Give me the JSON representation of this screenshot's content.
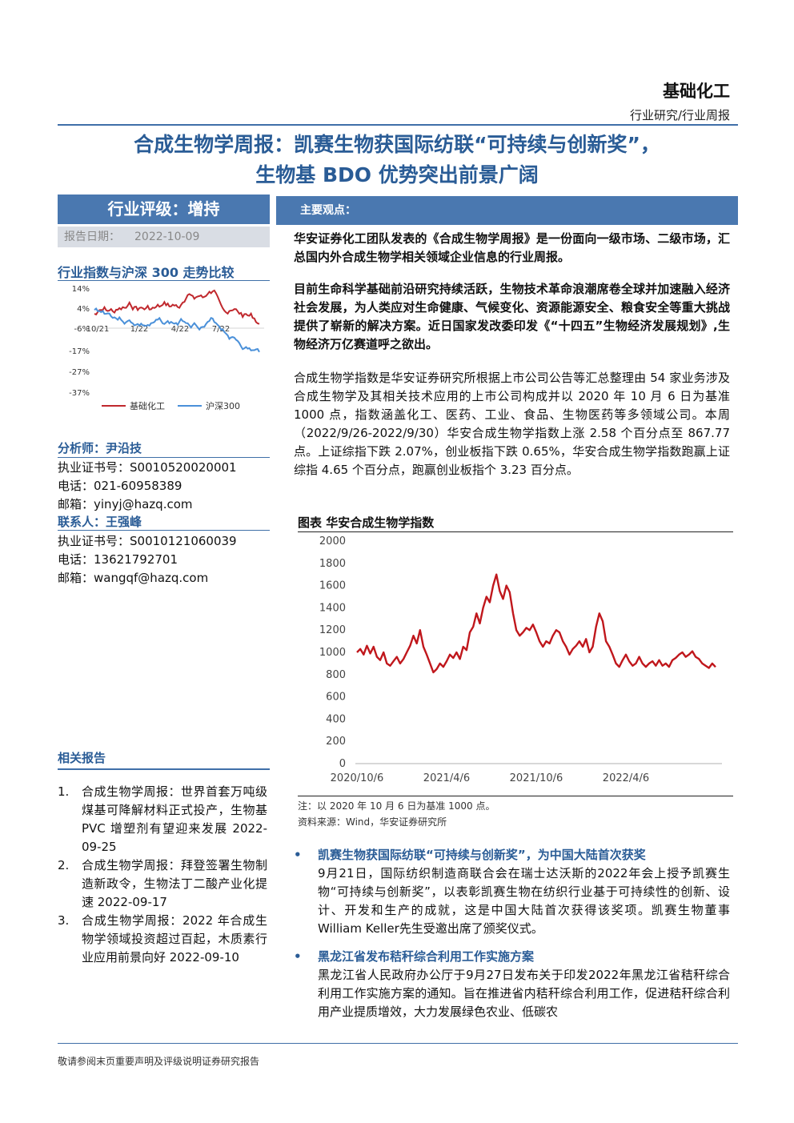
{
  "header": {
    "industry": "基础化工",
    "subtype": "行业研究/行业周报"
  },
  "title": {
    "line1": "合成生物学周报：凯赛生物获国际纺联“可持续与创新奖”，",
    "line2": "生物基 BDO 优势突出前景广阔"
  },
  "rating": {
    "label": "行业评级：增持",
    "date_label": "报告日期：",
    "date": "2022-10-09"
  },
  "comparison": {
    "title": "行业指数与沪深 300 走势比较",
    "chart_data": {
      "type": "line",
      "yticks": [
        "14%",
        "4%",
        "-6%",
        "-17%",
        "-27%",
        "-37%"
      ],
      "xticks": [
        "10/21",
        "1/22",
        "4/22",
        "7/22"
      ],
      "series": [
        {
          "name": "基础化工",
          "color": "#c0282d"
        },
        {
          "name": "沪深300",
          "color": "#4a90d9"
        }
      ]
    }
  },
  "analyst": {
    "title": "分析师：尹沿技",
    "cert_label": "执业证书号：",
    "cert": "S0010520020001",
    "phone_label": "电话：",
    "phone": "021-60958389",
    "email_label": "邮箱：",
    "email": "yinyj@hazq.com"
  },
  "contact": {
    "title": "联系人：王强峰",
    "cert_label": "执业证书号：",
    "cert": "S0010121060039",
    "phone_label": "电话：",
    "phone": "13621792701",
    "email_label": "邮箱：",
    "email": "wangqf@hazq.com"
  },
  "related": {
    "title": "相关报告",
    "items": [
      {
        "n": "1.",
        "text": "合成生物学周报：世界首套万吨级煤基可降解材料正式投产，生物基 PVC 增塑剂有望迎来发展 2022-09-25"
      },
      {
        "n": "2.",
        "text": "合成生物学周报：拜登签署生物制造新政令，生物法丁二酸产业化提速 2022-09-17"
      },
      {
        "n": "3.",
        "text": "合成生物学周报：2022 年合成生物学领域投资超过百起，木质素行业应用前景向好 2022-09-10"
      }
    ]
  },
  "main": {
    "views_label": "主要观点：",
    "p1": "华安证券化工团队发表的《合成生物学周报》是一份面向一级市场、二级市场，汇总国内外合成生物学相关领域企业信息的行业周报。",
    "p2": "目前生命科学基础前沿研究持续活跃，生物技术革命浪潮席卷全球并加速融入经济社会发展，为人类应对生命健康、气候变化、资源能源安全、粮食安全等重大挑战提供了崭新的解决方案。近日国家发改委印发《“十四五”生物经济发展规划》,生物经济万亿赛道呼之欲出。",
    "p3": "合成生物学指数是华安证券研究所根据上市公司公告等汇总整理由 54 家业务涉及合成生物学及其相关技术应用的上市公司构成并以 2020 年 10 月 6 日为基准 1000 点，指数涵盖化工、医药、工业、食品、生物医药等多领域公司。本周（2022/9/26-2022/9/30）华安合成生物学指数上涨 2.58 个百分点至 867.77 点。上证综指下跌 2.07%，创业板指下跌 0.65%，华安合成生物学指数跑赢上证综指 4.65 个百分点，跑赢创业板指个 3.23 百分点。"
  },
  "index_chart": {
    "title": "图表 华安合成生物学指数",
    "note": "注：以 2020 年 10 月 6 日为基准 1000 点。",
    "source": "资料来源：Wind，华安证券研究所",
    "chart_data": {
      "type": "line",
      "ylim": [
        0,
        2000
      ],
      "yticks": [
        "2000",
        "1800",
        "1600",
        "1400",
        "1200",
        "1000",
        "800",
        "600",
        "400",
        "200",
        "0"
      ],
      "xticks": [
        "2020/10/6",
        "2021/4/6",
        "2021/10/6",
        "2022/4/6"
      ],
      "color": "#c0171c",
      "values": [
        1000,
        1030,
        980,
        1060,
        990,
        1050,
        960,
        930,
        1000,
        900,
        880,
        920,
        960,
        900,
        940,
        1000,
        1060,
        1150,
        1080,
        1200,
        1050,
        980,
        900,
        820,
        850,
        900,
        870,
        920,
        980,
        950,
        1000,
        940,
        1050,
        1020,
        1180,
        1230,
        1350,
        1260,
        1400,
        1500,
        1450,
        1600,
        1700,
        1550,
        1480,
        1600,
        1540,
        1350,
        1200,
        1150,
        1180,
        1220,
        1200,
        1250,
        1180,
        1100,
        1050,
        1100,
        1080,
        1150,
        1200,
        1180,
        1100,
        1050,
        980,
        1030,
        1060,
        1100,
        1050,
        1120,
        1000,
        1050,
        1230,
        1350,
        1280,
        1100,
        1050,
        980,
        900,
        870,
        930,
        980,
        920,
        880,
        900,
        960,
        900,
        870,
        900,
        920,
        880,
        930,
        880,
        900,
        870,
        930,
        950,
        980,
        1000,
        960,
        980,
        1010,
        960,
        940,
        900,
        880,
        860,
        900,
        868
      ]
    }
  },
  "news": [
    {
      "head": "凯赛生物获国际纺联“可持续与创新奖”，为中国大陆首次获奖",
      "body": "9月21日，国际纺织制造商联合会在瑞士达沃斯的2022年会上授予凯赛生物“可持续与创新奖”，以表彰凯赛生物在纺织行业基于可持续性的创新、设计、开发和生产的成就，这是中国大陆首次获得该奖项。凯赛生物董事William Keller先生受邀出席了颁奖仪式。"
    },
    {
      "head": "黑龙江省发布秸秆综合利用工作实施方案",
      "body": "黑龙江省人民政府办公厅于9月27日发布关于印发2022年黑龙江省秸秆综合利用工作实施方案的通知。旨在推进省内秸秆综合利用工作，促进秸秆综合利用产业提质增效，大力发展绿色农业、低碳农"
    }
  ],
  "footer": "敬请参阅末页重要声明及评级说明证券研究报告"
}
